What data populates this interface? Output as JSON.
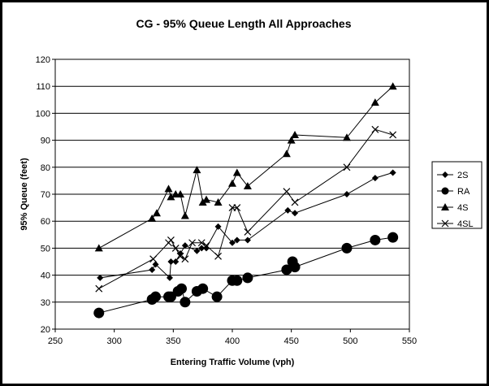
{
  "chart_data": {
    "type": "scatter",
    "title": "CG - 95% Queue Length All Approaches",
    "xlabel": "Entering Traffic Volume (vph)",
    "ylabel": "95% Queue (feet)",
    "xlim": [
      250,
      550
    ],
    "ylim": [
      20,
      120
    ],
    "x_ticks": [
      "250",
      "300",
      "350",
      "400",
      "450",
      "500",
      "550"
    ],
    "y_ticks": [
      "20",
      "30",
      "40",
      "50",
      "60",
      "70",
      "80",
      "90",
      "100",
      "110",
      "120"
    ],
    "grid": "horizontal",
    "legend_position": "right",
    "series": [
      {
        "name": "2S",
        "marker": "diamond",
        "points": [
          [
            288,
            39
          ],
          [
            332,
            42
          ],
          [
            335,
            44
          ],
          [
            347,
            39
          ],
          [
            348,
            45
          ],
          [
            352,
            45
          ],
          [
            356,
            48
          ],
          [
            360,
            51
          ],
          [
            370,
            49
          ],
          [
            374,
            50
          ],
          [
            378,
            50
          ],
          [
            388,
            58
          ],
          [
            400,
            52
          ],
          [
            404,
            53
          ],
          [
            413,
            53
          ],
          [
            447,
            64
          ],
          [
            453,
            63
          ],
          [
            497,
            70
          ],
          [
            521,
            76
          ],
          [
            536,
            78
          ]
        ]
      },
      {
        "name": "RA",
        "marker": "circle",
        "points": [
          [
            287,
            26
          ],
          [
            332,
            31
          ],
          [
            335,
            32
          ],
          [
            346,
            32
          ],
          [
            348,
            32
          ],
          [
            354,
            34
          ],
          [
            357,
            35
          ],
          [
            360,
            30
          ],
          [
            370,
            34
          ],
          [
            375,
            35
          ],
          [
            387,
            32
          ],
          [
            400,
            38
          ],
          [
            404,
            38
          ],
          [
            413,
            39
          ],
          [
            446,
            42
          ],
          [
            451,
            45
          ],
          [
            453,
            43
          ],
          [
            497,
            50
          ],
          [
            521,
            53
          ],
          [
            536,
            54
          ]
        ]
      },
      {
        "name": "4S",
        "marker": "triangle",
        "points": [
          [
            287,
            50
          ],
          [
            332,
            61
          ],
          [
            336,
            63
          ],
          [
            346,
            72
          ],
          [
            348,
            69
          ],
          [
            352,
            70
          ],
          [
            356,
            70
          ],
          [
            360,
            62
          ],
          [
            370,
            79
          ],
          [
            375,
            67
          ],
          [
            378,
            68
          ],
          [
            388,
            67
          ],
          [
            400,
            74
          ],
          [
            404,
            78
          ],
          [
            413,
            73
          ],
          [
            446,
            85
          ],
          [
            450,
            90
          ],
          [
            453,
            92
          ],
          [
            497,
            91
          ],
          [
            521,
            104
          ],
          [
            536,
            110
          ]
        ]
      },
      {
        "name": "4SL",
        "marker": "x",
        "points": [
          [
            287,
            35
          ],
          [
            333,
            46
          ],
          [
            346,
            52
          ],
          [
            348,
            53
          ],
          [
            352,
            50
          ],
          [
            356,
            47
          ],
          [
            360,
            46
          ],
          [
            366,
            52
          ],
          [
            374,
            52
          ],
          [
            378,
            51
          ],
          [
            388,
            47
          ],
          [
            400,
            65
          ],
          [
            404,
            65
          ],
          [
            413,
            56
          ],
          [
            446,
            71
          ],
          [
            453,
            67
          ],
          [
            497,
            80
          ],
          [
            521,
            94
          ],
          [
            536,
            92
          ]
        ]
      }
    ]
  },
  "colors": {
    "background": "#ffffff",
    "frame": "#000000",
    "marks": "#000000"
  }
}
